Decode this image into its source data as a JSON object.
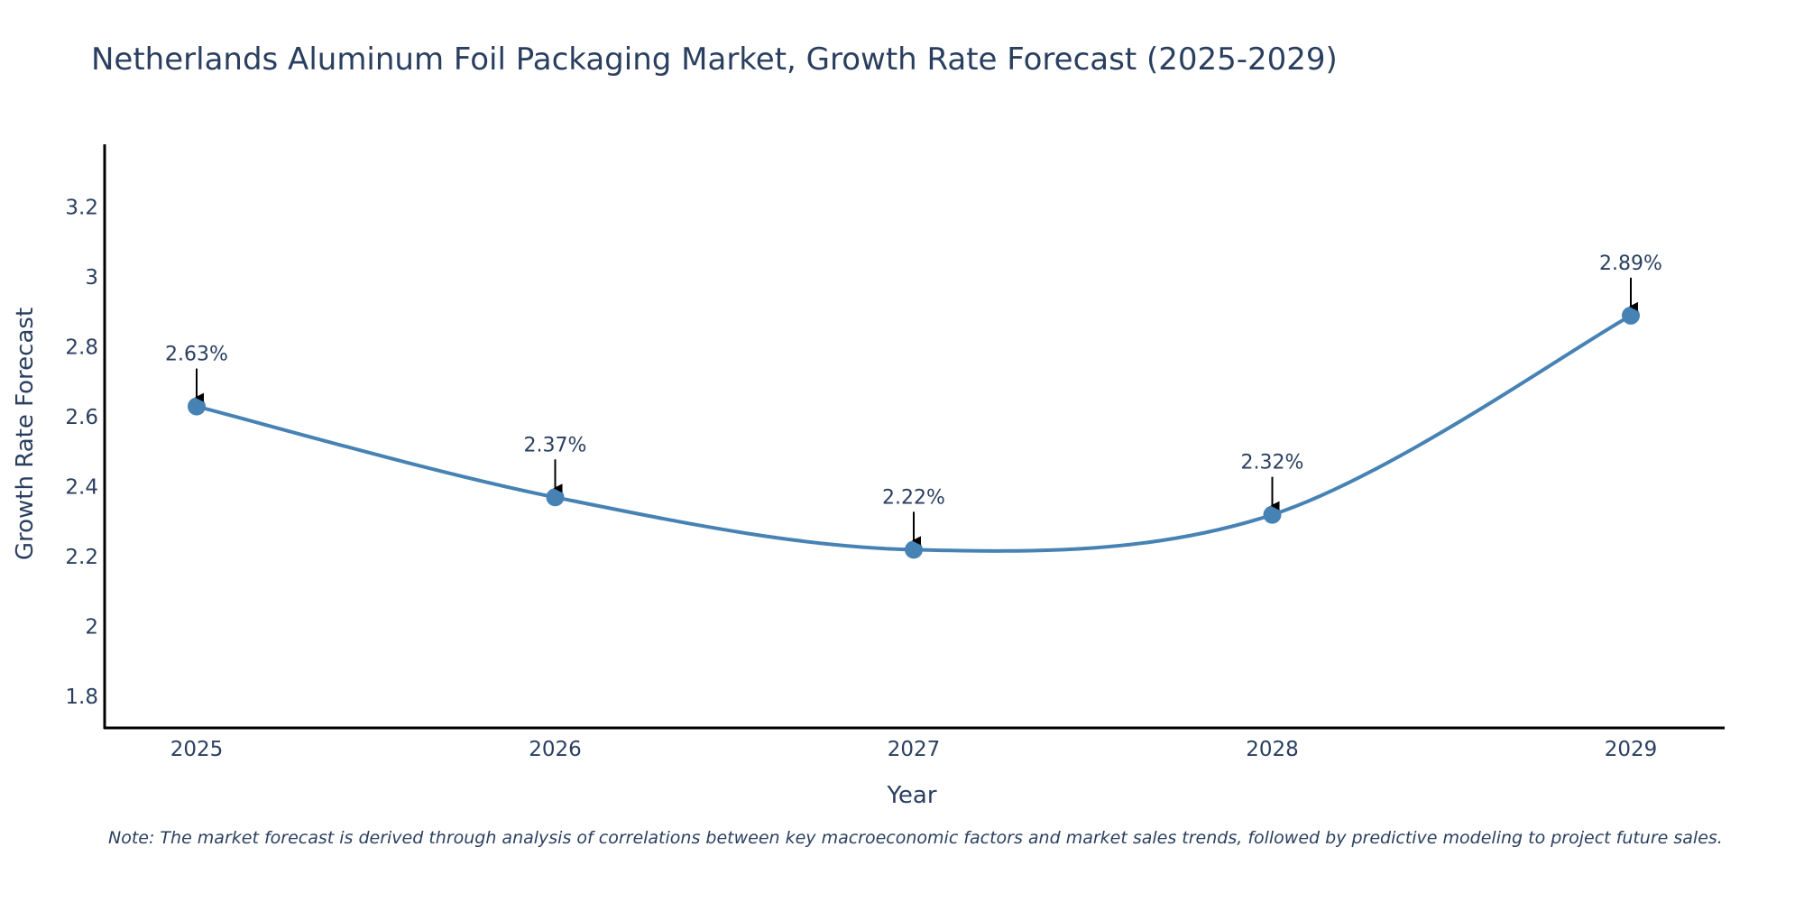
{
  "chart_data": {
    "type": "line",
    "title": "Netherlands Aluminum Foil Packaging Market, Growth Rate Forecast (2025-2029)",
    "xlabel": "Year",
    "ylabel": "Growth Rate Forecast",
    "categories": [
      "2025",
      "2026",
      "2027",
      "2028",
      "2029"
    ],
    "values": [
      2.63,
      2.37,
      2.22,
      2.32,
      2.89
    ],
    "data_labels": [
      "2.63%",
      "2.37%",
      "2.22%",
      "2.32%",
      "2.89%"
    ],
    "yticks": [
      1.8,
      2,
      2.2,
      2.4,
      2.6,
      2.8,
      3,
      3.2
    ],
    "ytick_labels": [
      "1.8",
      "2",
      "2.2",
      "2.4",
      "2.6",
      "2.8",
      "3",
      "3.2"
    ],
    "ylim": [
      1.71,
      3.38
    ],
    "grid": false,
    "line_color": "#4682b4",
    "marker_color": "#4682b4",
    "arrow_color": "#000000"
  },
  "note": "Note: The market forecast is derived through analysis of correlations between key macroeconomic factors and market sales trends, followed by predictive modeling to project future sales."
}
